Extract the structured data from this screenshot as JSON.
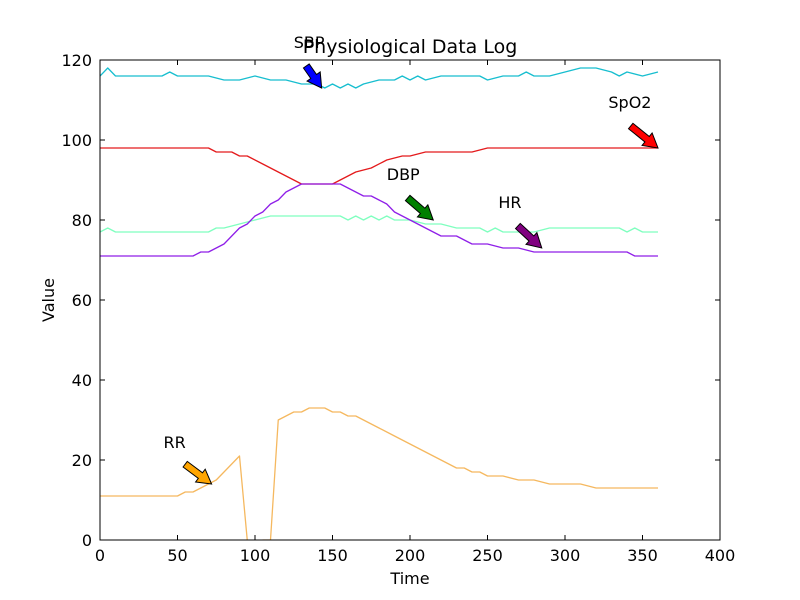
{
  "chart_data": {
    "type": "line",
    "title": "Physiological Data Log",
    "xlabel": "Time",
    "ylabel": "Value",
    "xlim": [
      0,
      400
    ],
    "ylim": [
      0,
      120
    ],
    "xticks": [
      0,
      50,
      100,
      150,
      200,
      250,
      300,
      350,
      400
    ],
    "yticks": [
      0,
      20,
      40,
      60,
      80,
      100,
      120
    ],
    "grid": false,
    "legend": "none",
    "series": [
      {
        "name": "SBP",
        "color": "#17becf",
        "x": [
          0,
          5,
          10,
          20,
          30,
          40,
          45,
          50,
          60,
          70,
          80,
          90,
          100,
          110,
          120,
          130,
          140,
          145,
          150,
          155,
          160,
          165,
          170,
          180,
          190,
          195,
          200,
          205,
          210,
          220,
          230,
          240,
          245,
          250,
          260,
          270,
          275,
          280,
          290,
          300,
          310,
          320,
          330,
          335,
          340,
          350,
          360
        ],
        "y": [
          116,
          118,
          116,
          116,
          116,
          116,
          117,
          116,
          116,
          116,
          115,
          115,
          116,
          115,
          115,
          114,
          114,
          113,
          114,
          113,
          114,
          113,
          114,
          115,
          115,
          116,
          115,
          116,
          115,
          116,
          116,
          116,
          116,
          115,
          116,
          116,
          117,
          116,
          116,
          117,
          118,
          118,
          117,
          116,
          117,
          116,
          117
        ]
      },
      {
        "name": "SpO2",
        "color": "#e41a1c",
        "x": [
          0,
          20,
          40,
          60,
          70,
          75,
          85,
          90,
          95,
          105,
          115,
          125,
          130,
          140,
          150,
          160,
          165,
          175,
          185,
          195,
          200,
          210,
          220,
          240,
          250,
          260,
          280,
          300,
          320,
          340,
          360
        ],
        "y": [
          98,
          98,
          98,
          98,
          98,
          97,
          97,
          96,
          96,
          94,
          92,
          90,
          89,
          89,
          89,
          91,
          92,
          93,
          95,
          96,
          96,
          97,
          97,
          97,
          98,
          98,
          98,
          98,
          98,
          98,
          98
        ]
      },
      {
        "name": "DBP",
        "color": "#7fffbf",
        "x": [
          0,
          5,
          10,
          20,
          40,
          60,
          70,
          75,
          80,
          90,
          100,
          110,
          120,
          140,
          155,
          160,
          165,
          170,
          175,
          180,
          185,
          190,
          195,
          200,
          210,
          220,
          230,
          240,
          245,
          250,
          255,
          260,
          270,
          275,
          280,
          290,
          300,
          320,
          335,
          340,
          345,
          350,
          360
        ],
        "y": [
          77,
          78,
          77,
          77,
          77,
          77,
          77,
          78,
          78,
          79,
          80,
          81,
          81,
          81,
          81,
          80,
          81,
          80,
          81,
          80,
          81,
          80,
          80,
          80,
          79,
          79,
          78,
          78,
          78,
          77,
          78,
          77,
          77,
          77,
          77,
          78,
          78,
          78,
          78,
          77,
          78,
          77,
          77
        ]
      },
      {
        "name": "HR",
        "color": "#8f1fe8",
        "x": [
          0,
          20,
          40,
          60,
          65,
          70,
          80,
          90,
          95,
          100,
          105,
          110,
          115,
          120,
          125,
          130,
          140,
          150,
          155,
          160,
          165,
          170,
          175,
          180,
          185,
          190,
          200,
          210,
          220,
          230,
          240,
          250,
          260,
          270,
          280,
          300,
          320,
          340,
          345,
          360
        ],
        "y": [
          71,
          71,
          71,
          71,
          72,
          72,
          74,
          78,
          79,
          81,
          82,
          84,
          85,
          87,
          88,
          89,
          89,
          89,
          89,
          88,
          87,
          86,
          86,
          85,
          84,
          82,
          80,
          78,
          76,
          76,
          74,
          74,
          73,
          73,
          72,
          72,
          72,
          72,
          71,
          71
        ]
      },
      {
        "name": "RR",
        "color": "#f5b85f",
        "x": [
          0,
          20,
          40,
          50,
          55,
          60,
          65,
          70,
          75,
          80,
          85,
          90,
          95,
          100,
          105,
          110,
          115,
          120,
          125,
          130,
          135,
          140,
          145,
          150,
          155,
          160,
          165,
          170,
          180,
          190,
          200,
          210,
          220,
          230,
          235,
          240,
          245,
          250,
          260,
          270,
          280,
          290,
          300,
          310,
          320,
          330,
          340,
          350,
          360
        ],
        "y": [
          11,
          11,
          11,
          11,
          12,
          12,
          13,
          14,
          15,
          17,
          19,
          21,
          0,
          -2,
          0,
          0,
          30,
          31,
          32,
          32,
          33,
          33,
          33,
          32,
          32,
          31,
          31,
          30,
          28,
          26,
          24,
          22,
          20,
          18,
          18,
          17,
          17,
          16,
          16,
          15,
          15,
          14,
          14,
          14,
          13,
          13,
          13,
          13,
          13
        ]
      }
    ],
    "annotations": [
      {
        "text": "SBP",
        "x": 143,
        "y": 113,
        "text_x": 125,
        "text_y": 123,
        "arrow_color": "#0000ff"
      },
      {
        "text": "SpO2",
        "x": 360,
        "y": 98,
        "text_x": 328,
        "text_y": 108,
        "arrow_color": "#ff0000"
      },
      {
        "text": "DBP",
        "x": 215,
        "y": 80,
        "text_x": 185,
        "text_y": 90,
        "arrow_color": "#008000"
      },
      {
        "text": "HR",
        "x": 285,
        "y": 73,
        "text_x": 257,
        "text_y": 83,
        "arrow_color": "#800080"
      },
      {
        "text": "RR",
        "x": 72,
        "y": 14,
        "text_x": 41,
        "text_y": 23,
        "arrow_color": "#ffa500"
      }
    ]
  }
}
